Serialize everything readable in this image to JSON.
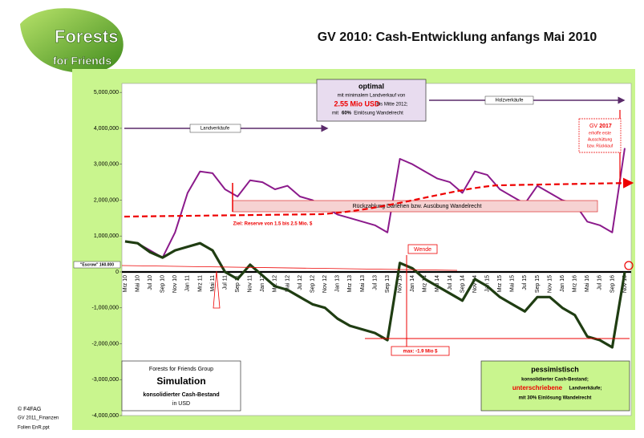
{
  "header": {
    "title": "GV 2010: Cash-Entwicklung anfangs Mai 2010"
  },
  "logo": {
    "line1": "Forests",
    "line2": "for Friends"
  },
  "footer": [
    "© F4FAG",
    "GV 2011_Finanzen",
    "Folien EnR.ppt"
  ],
  "chart_data": {
    "type": "line",
    "categories": [
      "Mrz 10",
      "Mai 10",
      "Jul 10",
      "Sep 10",
      "Nov 10",
      "Jan 11",
      "Mrz 11",
      "Mai 11",
      "Jul 11",
      "Sep 11",
      "Nov 11",
      "Jan 12",
      "Mrz 12",
      "Mai 12",
      "Jul 12",
      "Sep 12",
      "Nov 12",
      "Jan 13",
      "Mrz 13",
      "Mai 13",
      "Jul 13",
      "Sep 13",
      "Nov 13",
      "Jan 14",
      "Mrz 14",
      "Mai 14",
      "Jul 14",
      "Sep 14",
      "Nov 14",
      "Jan 15",
      "Mrz 15",
      "Mai 15",
      "Jul 15",
      "Sep 15",
      "Nov 15",
      "Jan 16",
      "Mrz 16",
      "Mai 16",
      "Jul 16",
      "Sep 16",
      "Nov 16"
    ],
    "series": [
      {
        "name": "optimal",
        "color": "#8b1a8b",
        "values": [
          850000,
          800000,
          600000,
          400000,
          1100000,
          2200000,
          2800000,
          2750000,
          2300000,
          2100000,
          2550000,
          2500000,
          2300000,
          2400000,
          2100000,
          2000000,
          1800000,
          1600000,
          1500000,
          1400000,
          1300000,
          1100000,
          3150000,
          3000000,
          2800000,
          2600000,
          2500000,
          2200000,
          2800000,
          2700000,
          2300000,
          2100000,
          1900000,
          2400000,
          2200000,
          2000000,
          1900000,
          1400000,
          1300000,
          1100000,
          3450000
        ]
      },
      {
        "name": "pessimistisch",
        "color": "#1f3d12",
        "values": [
          850000,
          800000,
          550000,
          400000,
          600000,
          700000,
          800000,
          600000,
          0,
          -200000,
          200000,
          -100000,
          -400000,
          -500000,
          -700000,
          -900000,
          -1000000,
          -1300000,
          -1500000,
          -1600000,
          -1700000,
          -1900000,
          250000,
          100000,
          -200000,
          -400000,
          -600000,
          -800000,
          -200000,
          -400000,
          -700000,
          -900000,
          -1100000,
          -700000,
          -700000,
          -1000000,
          -1200000,
          -1800000,
          -1900000,
          -2100000,
          0
        ]
      }
    ],
    "ylim": [
      -4000000,
      5250000
    ],
    "yticks": [
      {
        "value": 5000000,
        "label": "5,000,000"
      },
      {
        "value": 4000000,
        "label": "4,000,000"
      },
      {
        "value": 3000000,
        "label": "3,000,000"
      },
      {
        "value": 2000000,
        "label": "2,000,000"
      },
      {
        "value": 1000000,
        "label": "1,000,000"
      },
      0,
      {
        "value": -1000000,
        "label": "-1,000,000"
      },
      {
        "value": -2000000,
        "label": "-2,000,000"
      },
      {
        "value": -3000000,
        "label": "-3,000,000"
      },
      {
        "value": -4000000,
        "label": "-4,000,000"
      }
    ],
    "annotations": {
      "optimal_title": "optimal",
      "optimal_l1": "mit minimalem Landverkauf von",
      "optimal_amount": "2.55 Mio USD",
      "optimal_l2": "bis Mitte 2012;",
      "optimal_l3a": "mit",
      "optimal_l3b": "60%",
      "optimal_l3c": "Einlösung Wandelrecht",
      "holz": "Holzverkäufe",
      "land": "Landverkäufe",
      "gv_a": "GV",
      "gv_b": "2017",
      "gv_l1": "erhoffe erste",
      "gv_l2": "Ausschüttung",
      "gv_l3": "bzw. Rückkauf",
      "rueck": "Rückzahlung Darlehen   bzw. Ausübung Wandelrecht",
      "ziel": "Ziel: Reserve von 1.5  bis 2.5 Mio. $",
      "wende": "Wende",
      "max": "max: -1.9 Mio $",
      "escrow": "\"Escrow\" 160.000",
      "sim_l1": "Forests for Friends Group",
      "sim_l2": "Simulation",
      "sim_l3": "konsolidierter Cash-Bestand",
      "sim_l4": "in USD",
      "pess_title": "pessimistisch",
      "pess_l1": "konsolidierter Cash-Bestand;",
      "pess_l2a": "unterschriebene",
      "pess_l2b": "Landverkäufe;",
      "pess_l3": "mit 30% Einlösung Wandelrecht"
    }
  }
}
